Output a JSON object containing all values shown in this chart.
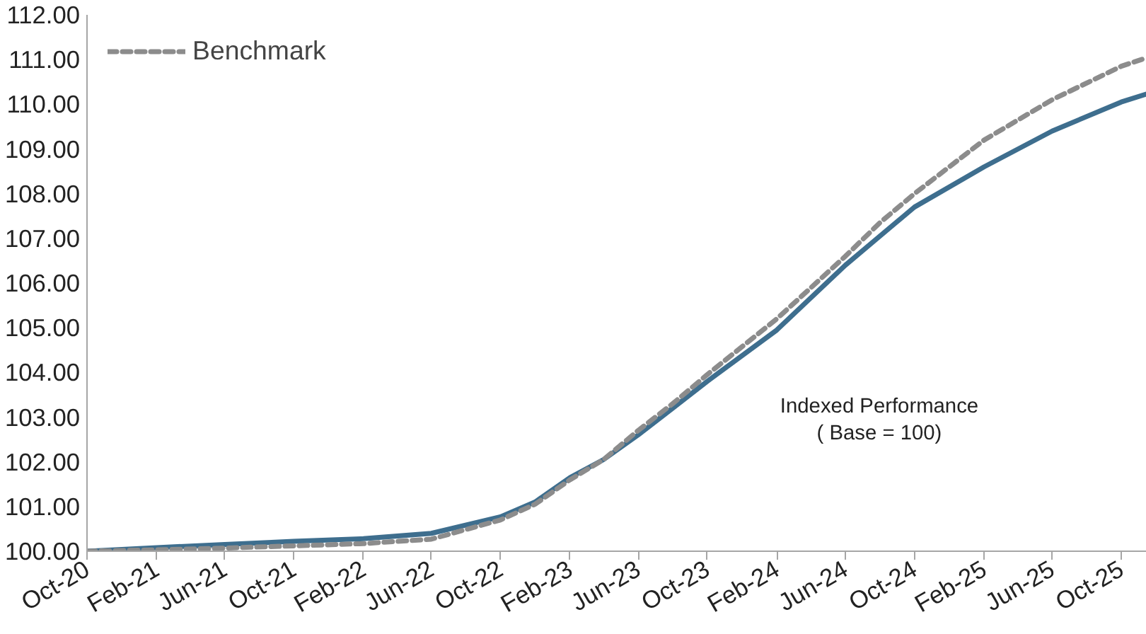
{
  "chart_data": {
    "type": "line",
    "xlim": [
      "2020-10-01",
      "2025-11-15"
    ],
    "xticks": [
      {
        "value": "2020-10-01",
        "label": "Oct-20"
      },
      {
        "value": "2021-02-01",
        "label": "Feb-21"
      },
      {
        "value": "2021-06-01",
        "label": "Jun-21"
      },
      {
        "value": "2021-10-01",
        "label": "Oct-21"
      },
      {
        "value": "2022-02-01",
        "label": "Feb-22"
      },
      {
        "value": "2022-06-01",
        "label": "Jun-22"
      },
      {
        "value": "2022-10-01",
        "label": "Oct-22"
      },
      {
        "value": "2023-02-01",
        "label": "Feb-23"
      },
      {
        "value": "2023-06-01",
        "label": "Jun-23"
      },
      {
        "value": "2023-10-01",
        "label": "Oct-23"
      },
      {
        "value": "2024-02-01",
        "label": "Feb-24"
      },
      {
        "value": "2024-06-01",
        "label": "Jun-24"
      },
      {
        "value": "2024-10-01",
        "label": "Oct-24"
      },
      {
        "value": "2025-02-01",
        "label": "Feb-25"
      },
      {
        "value": "2025-06-01",
        "label": "Jun-25"
      },
      {
        "value": "2025-10-01",
        "label": "Oct-25"
      }
    ],
    "ylim": [
      100,
      112
    ],
    "yticks": [
      {
        "value": 100,
        "label": "100.00"
      },
      {
        "value": 101,
        "label": "101.00"
      },
      {
        "value": 102,
        "label": "102.00"
      },
      {
        "value": 103,
        "label": "103.00"
      },
      {
        "value": 104,
        "label": "104.00"
      },
      {
        "value": 105,
        "label": "105.00"
      },
      {
        "value": 106,
        "label": "106.00"
      },
      {
        "value": 107,
        "label": "107.00"
      },
      {
        "value": 108,
        "label": "108.00"
      },
      {
        "value": 109,
        "label": "109.00"
      },
      {
        "value": 110,
        "label": "110.00"
      },
      {
        "value": 111,
        "label": "111.00"
      },
      {
        "value": 112,
        "label": "112.00"
      }
    ],
    "x": [
      "2020-10-01",
      "2021-02-01",
      "2021-06-01",
      "2021-10-01",
      "2022-02-01",
      "2022-06-01",
      "2022-10-01",
      "2022-12-01",
      "2023-02-01",
      "2023-04-01",
      "2023-06-01",
      "2023-08-01",
      "2023-10-01",
      "2024-02-01",
      "2024-06-01",
      "2024-08-01",
      "2024-10-01",
      "2025-02-01",
      "2025-06-01",
      "2025-10-01",
      "2025-11-15"
    ],
    "series": [
      {
        "color": "#3e6e8e",
        "line_style": "solid",
        "values": [
          100.0,
          100.08,
          100.15,
          100.22,
          100.28,
          100.4,
          100.77,
          101.1,
          101.65,
          102.05,
          102.6,
          103.2,
          103.8,
          104.95,
          106.4,
          107.05,
          107.7,
          108.6,
          109.4,
          110.05,
          110.23
        ]
      },
      {
        "name": "Benchmark",
        "color": "#8c8c8c",
        "line_style": "dashed",
        "values": [
          100.0,
          100.03,
          100.07,
          100.12,
          100.17,
          100.27,
          100.7,
          101.05,
          101.6,
          102.05,
          102.7,
          103.3,
          103.95,
          105.2,
          106.6,
          107.35,
          108.0,
          109.2,
          110.1,
          110.85,
          111.04
        ]
      }
    ],
    "legend": "top left",
    "grid": false,
    "marker": "none",
    "annotations": [
      "Indexed Performance\n( Base = 100)"
    ]
  }
}
